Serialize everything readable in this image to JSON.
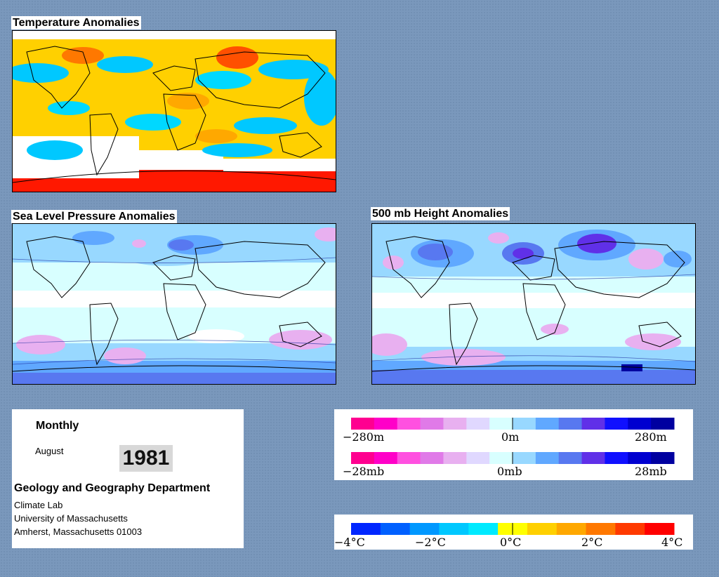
{
  "maps": {
    "temperature": {
      "title": "Temperature Anomalies"
    },
    "slp": {
      "title": "Sea Level Pressure Anomalies"
    },
    "height": {
      "title": "500 mb Height Anomalies"
    }
  },
  "info": {
    "period": "Monthly",
    "month": "August",
    "year": "1981",
    "department": "Geology and Geography Department",
    "lab": "Climate Lab",
    "university": "University of Massachusetts",
    "address": "Amherst, Massachusetts 01003"
  },
  "colors": {
    "temp_scale": [
      "#0026ff",
      "#0060ff",
      "#0098ff",
      "#00c8ff",
      "#00eaff",
      "#ffff00",
      "#ffd000",
      "#ffa800",
      "#ff7800",
      "#ff3a00",
      "#ff0000"
    ],
    "anomaly_scale": [
      "#ff0090",
      "#ff00c8",
      "#ff50e0",
      "#e07ae8",
      "#e8b0f0",
      "#e0d8ff",
      "#d8ffff",
      "#98d8ff",
      "#60a8ff",
      "#5878f0",
      "#6030e8",
      "#1010ff",
      "#0000d0",
      "#0000a0"
    ]
  },
  "legends": {
    "height": {
      "labels": [
        "−280m",
        "0m",
        "280m"
      ]
    },
    "pressure": {
      "labels": [
        "−28mb",
        "0mb",
        "28mb"
      ]
    },
    "temperature": {
      "labels": [
        "−4°C",
        "−2°C",
        "0°C",
        "2°C",
        "4°C"
      ]
    }
  }
}
